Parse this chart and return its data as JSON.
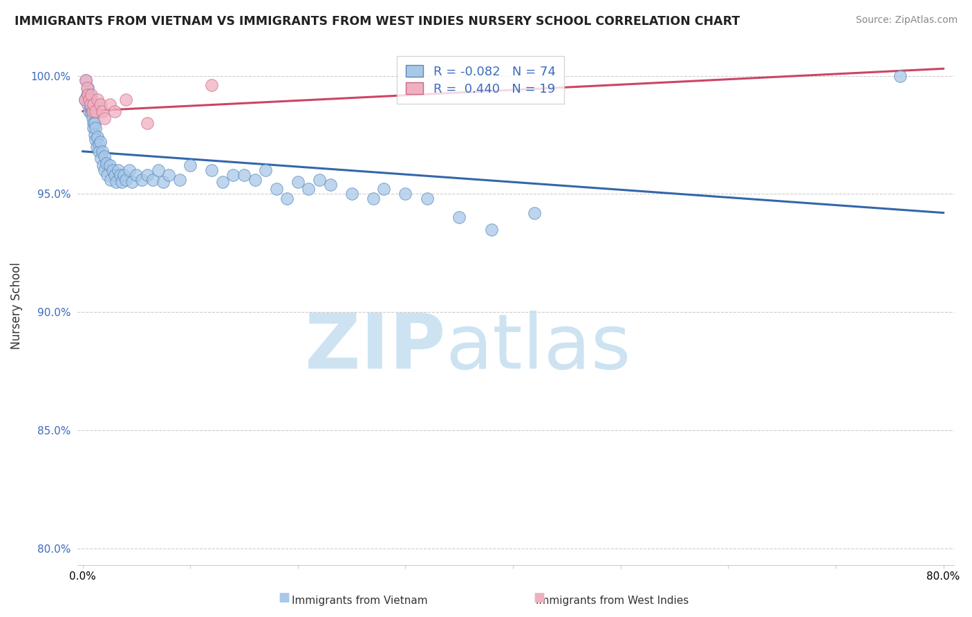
{
  "title": "IMMIGRANTS FROM VIETNAM VS IMMIGRANTS FROM WEST INDIES NURSERY SCHOOL CORRELATION CHART",
  "source": "Source: ZipAtlas.com",
  "ylabel": "Nursery School",
  "xlabel_blue": "Immigrants from Vietnam",
  "xlabel_pink": "Immigrants from West Indies",
  "watermark_zip": "ZIP",
  "watermark_atlas": "atlas",
  "legend_blue_r": "-0.082",
  "legend_blue_n": "74",
  "legend_pink_r": "0.440",
  "legend_pink_n": "19",
  "xlim": [
    -0.005,
    0.81
  ],
  "ylim": [
    0.793,
    1.012
  ],
  "yticks": [
    0.8,
    0.85,
    0.9,
    0.95,
    1.0
  ],
  "ytick_labels": [
    "80.0%",
    "85.0%",
    "90.0%",
    "95.0%",
    "100.0%"
  ],
  "xticks": [
    0.0,
    0.1,
    0.2,
    0.3,
    0.4,
    0.5,
    0.6,
    0.7,
    0.8
  ],
  "xtick_labels": [
    "0.0%",
    "",
    "",
    "",
    "",
    "",
    "",
    "",
    "80.0%"
  ],
  "blue_color": "#a8c8e8",
  "blue_edge_color": "#5588bb",
  "blue_line_color": "#3366aa",
  "pink_color": "#f0b0c0",
  "pink_edge_color": "#cc6688",
  "pink_line_color": "#cc4466",
  "grid_color": "#cccccc",
  "blue_scatter_x": [
    0.002,
    0.003,
    0.004,
    0.005,
    0.005,
    0.006,
    0.006,
    0.007,
    0.007,
    0.008,
    0.008,
    0.009,
    0.009,
    0.01,
    0.01,
    0.01,
    0.011,
    0.011,
    0.012,
    0.012,
    0.013,
    0.014,
    0.015,
    0.015,
    0.016,
    0.017,
    0.018,
    0.019,
    0.02,
    0.02,
    0.022,
    0.023,
    0.025,
    0.026,
    0.028,
    0.03,
    0.031,
    0.033,
    0.035,
    0.036,
    0.038,
    0.04,
    0.043,
    0.046,
    0.05,
    0.055,
    0.06,
    0.065,
    0.07,
    0.075,
    0.08,
    0.09,
    0.1,
    0.12,
    0.13,
    0.14,
    0.15,
    0.16,
    0.17,
    0.18,
    0.19,
    0.2,
    0.21,
    0.22,
    0.23,
    0.25,
    0.27,
    0.28,
    0.3,
    0.32,
    0.35,
    0.38,
    0.42,
    0.76
  ],
  "blue_scatter_y": [
    0.99,
    0.998,
    0.992,
    0.988,
    0.995,
    0.985,
    0.992,
    0.99,
    0.987,
    0.984,
    0.989,
    0.985,
    0.982,
    0.986,
    0.98,
    0.978,
    0.98,
    0.975,
    0.978,
    0.973,
    0.97,
    0.974,
    0.971,
    0.968,
    0.972,
    0.965,
    0.968,
    0.962,
    0.966,
    0.96,
    0.963,
    0.958,
    0.962,
    0.956,
    0.96,
    0.958,
    0.955,
    0.96,
    0.958,
    0.955,
    0.958,
    0.956,
    0.96,
    0.955,
    0.958,
    0.956,
    0.958,
    0.956,
    0.96,
    0.955,
    0.958,
    0.956,
    0.962,
    0.96,
    0.955,
    0.958,
    0.958,
    0.956,
    0.96,
    0.952,
    0.948,
    0.955,
    0.952,
    0.956,
    0.954,
    0.95,
    0.948,
    0.952,
    0.95,
    0.948,
    0.94,
    0.935,
    0.942,
    1.0
  ],
  "pink_scatter_x": [
    0.002,
    0.003,
    0.004,
    0.005,
    0.006,
    0.007,
    0.008,
    0.009,
    0.01,
    0.012,
    0.014,
    0.016,
    0.018,
    0.02,
    0.025,
    0.03,
    0.04,
    0.06,
    0.12
  ],
  "pink_scatter_y": [
    0.99,
    0.998,
    0.995,
    0.992,
    0.99,
    0.988,
    0.992,
    0.985,
    0.988,
    0.985,
    0.99,
    0.988,
    0.985,
    0.982,
    0.988,
    0.985,
    0.99,
    0.98,
    0.996
  ],
  "blue_trendline_x": [
    0.0,
    0.8
  ],
  "blue_trendline_y": [
    0.968,
    0.942
  ],
  "pink_trendline_x": [
    0.0,
    0.8
  ],
  "pink_trendline_y": [
    0.985,
    1.003
  ]
}
